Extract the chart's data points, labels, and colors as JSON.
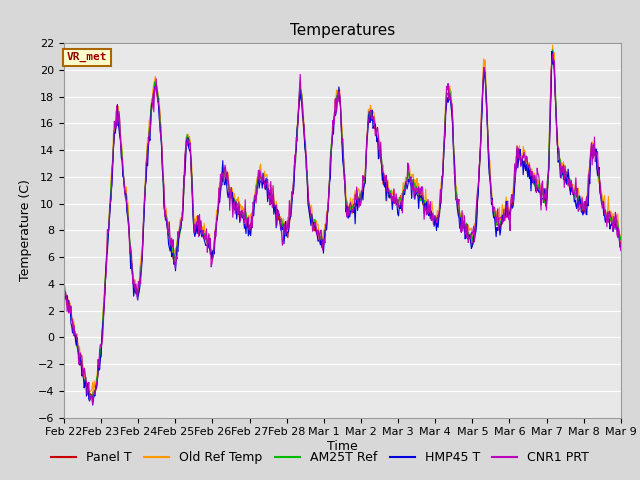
{
  "title": "Temperatures",
  "xlabel": "Time",
  "ylabel": "Temperature (C)",
  "ylim": [
    -6,
    22
  ],
  "yticks": [
    -6,
    -4,
    -2,
    0,
    2,
    4,
    6,
    8,
    10,
    12,
    14,
    16,
    18,
    20,
    22
  ],
  "series_names": [
    "Panel T",
    "Old Ref Temp",
    "AM25T Ref",
    "HMP45 T",
    "CNR1 PRT"
  ],
  "series_colors": [
    "#cc0000",
    "#ff9900",
    "#00bb00",
    "#0000dd",
    "#bb00bb"
  ],
  "annotation_text": "VR_met",
  "annotation_color": "#990000",
  "annotation_bg": "#ffffcc",
  "annotation_border": "#aa6600",
  "xtick_labels": [
    "Feb 22",
    "Feb 23",
    "Feb 24",
    "Feb 25",
    "Feb 26",
    "Feb 27",
    "Feb 28",
    "Mar 1",
    "Mar 2",
    "Mar 3",
    "Mar 4",
    "Mar 5",
    "Mar 6",
    "Mar 7",
    "Mar 8",
    "Mar 9"
  ],
  "bg_color": "#d8d8d8",
  "plot_bg_color": "#e8e8e8",
  "grid_color": "#ffffff",
  "title_fontsize": 11,
  "axis_label_fontsize": 9,
  "tick_fontsize": 8,
  "legend_fontsize": 9
}
